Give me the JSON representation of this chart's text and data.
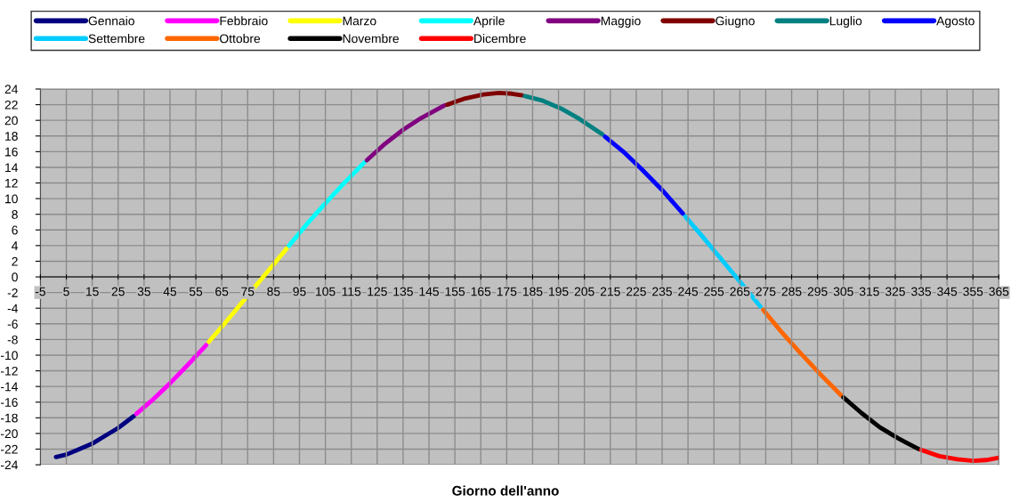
{
  "chart_data": {
    "type": "line",
    "xlabel": "Giorno dell'anno",
    "xlim": [
      -5,
      365
    ],
    "xticks": [
      -5,
      5,
      15,
      25,
      35,
      45,
      55,
      65,
      75,
      85,
      95,
      105,
      115,
      125,
      135,
      145,
      155,
      165,
      175,
      185,
      195,
      205,
      215,
      225,
      235,
      245,
      255,
      265,
      275,
      285,
      295,
      305,
      315,
      325,
      335,
      345,
      355,
      365
    ],
    "ylim": [
      -24,
      24
    ],
    "yticks": [
      -24,
      -22,
      -20,
      -18,
      -16,
      -14,
      -12,
      -10,
      -8,
      -6,
      -4,
      -2,
      0,
      2,
      4,
      6,
      8,
      10,
      12,
      14,
      16,
      18,
      20,
      22,
      24
    ],
    "grid": true,
    "legend": "top",
    "marker": "none",
    "line_style": "solid",
    "series": [
      {
        "name": "Gennaio",
        "color": "#000080",
        "x": [
          1,
          5,
          10,
          15,
          20,
          25,
          31
        ],
        "values": [
          -23.0,
          -22.7,
          -22.0,
          -21.3,
          -20.3,
          -19.3,
          -17.8
        ]
      },
      {
        "name": "Febbraio",
        "color": "#ff00ff",
        "x": [
          32,
          38,
          45,
          52,
          59
        ],
        "values": [
          -17.5,
          -15.8,
          -13.6,
          -11.2,
          -8.7
        ]
      },
      {
        "name": "Marzo",
        "color": "#ffff00",
        "x": [
          60,
          67,
          74,
          81,
          85,
          90
        ],
        "values": [
          -8.3,
          -5.6,
          -2.8,
          0.0,
          1.6,
          3.6
        ]
      },
      {
        "name": "Aprile",
        "color": "#00ffff",
        "x": [
          91,
          98,
          105,
          112,
          120
        ],
        "values": [
          4.0,
          6.8,
          9.4,
          11.9,
          14.6
        ]
      },
      {
        "name": "Maggio",
        "color": "#800080",
        "x": [
          121,
          128,
          135,
          142,
          151
        ],
        "values": [
          14.9,
          17.0,
          18.8,
          20.3,
          21.9
        ]
      },
      {
        "name": "Giugno",
        "color": "#800000",
        "x": [
          152,
          159,
          166,
          172,
          177,
          181
        ],
        "values": [
          22.0,
          22.8,
          23.3,
          23.5,
          23.4,
          23.2
        ]
      },
      {
        "name": "Luglio",
        "color": "#008080",
        "x": [
          182,
          189,
          196,
          203,
          212
        ],
        "values": [
          23.1,
          22.5,
          21.5,
          20.2,
          18.2
        ]
      },
      {
        "name": "Agosto",
        "color": "#0000ff",
        "x": [
          213,
          220,
          227,
          235,
          243
        ],
        "values": [
          17.9,
          16.0,
          13.8,
          11.1,
          8.1
        ]
      },
      {
        "name": "Settembre",
        "color": "#00ccff",
        "x": [
          244,
          251,
          258,
          265,
          273
        ],
        "values": [
          7.7,
          5.0,
          2.2,
          -0.6,
          -3.8
        ]
      },
      {
        "name": "Ottobre",
        "color": "#ff6600",
        "x": [
          274,
          281,
          288,
          296,
          304
        ],
        "values": [
          -4.2,
          -7.0,
          -9.6,
          -12.4,
          -15.1
        ]
      },
      {
        "name": "Novembre",
        "color": "#000000",
        "x": [
          305,
          312,
          319,
          326,
          334
        ],
        "values": [
          -15.4,
          -17.4,
          -19.2,
          -20.6,
          -22.0
        ]
      },
      {
        "name": "Dicembre",
        "color": "#ff0000",
        "x": [
          335,
          342,
          349,
          355,
          360,
          365
        ],
        "values": [
          -22.1,
          -22.9,
          -23.3,
          -23.5,
          -23.4,
          -23.1
        ]
      }
    ]
  }
}
